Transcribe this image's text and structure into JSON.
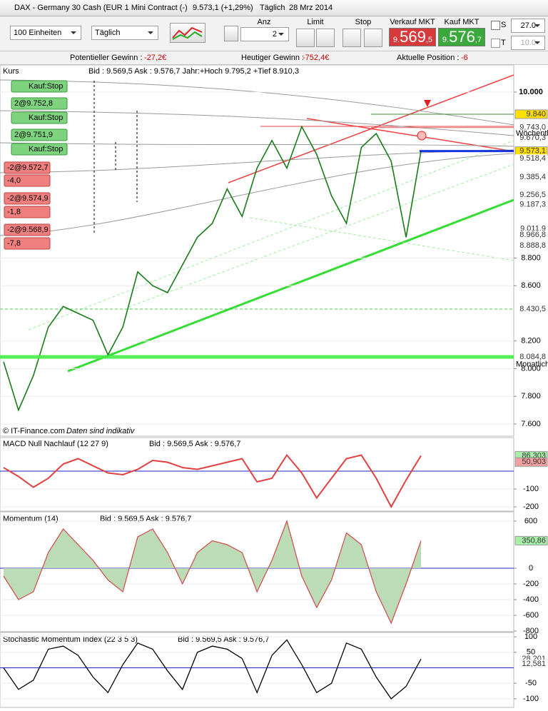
{
  "title_bar": {
    "instrument": "DAX - Germany 30 Cash (EUR 1 Mini Contract (-)",
    "price": "9.573,1 (+1,29%)",
    "period": "Täglich",
    "date": "28 Mrz 2014"
  },
  "toolbar": {
    "units": "100 Einheiten",
    "interval": "Täglich",
    "qty_label": "Anz",
    "qty": "2",
    "limit_label": "Limit",
    "stop_label": "Stop",
    "sell_label": "Verkauf MKT",
    "sell_prefix": "9.",
    "sell_main": "569",
    "sell_suffix": ",5",
    "buy_label": "Kauf MKT",
    "buy_prefix": "9.",
    "buy_main": "576",
    "buy_suffix": ",7",
    "s_label": "S",
    "s_value": "27.0",
    "t_label": "T",
    "t_value": "10.0"
  },
  "stats": [
    {
      "label": "Potentieller Gewinn :",
      "value": "-27,2€"
    },
    {
      "label": "Heutiger Gewinn :",
      "value": "-752,4€"
    },
    {
      "label": "Aktuelle Position :",
      "value": "-6"
    }
  ],
  "main": {
    "name": "Kurs",
    "info": "Bid : 9.569,5 Ask : 9.576,7 Jahr:+Hoch 9.795,2 +Tief 8.910,3",
    "footer_brand": "© IT-Finance.com",
    "footer_note": "Daten sind indikativ",
    "orders": [
      {
        "label": "Kauf:Stop",
        "kind": "buy"
      },
      {
        "label": "2@9.752,8",
        "kind": "buy"
      },
      {
        "label": "Kauf:Stop",
        "kind": "buy"
      },
      {
        "label": "2@9.751,9",
        "kind": "buy"
      },
      {
        "label": "Kauf:Stop",
        "kind": "buy"
      },
      {
        "label": "-2@9.572,7",
        "kind": "sell"
      },
      {
        "label": "-4,0",
        "kind": "sell"
      },
      {
        "label": "-2@9.574,9",
        "kind": "sell"
      },
      {
        "label": "-1,8",
        "kind": "sell"
      },
      {
        "label": "-2@9.568,9",
        "kind": "sell"
      },
      {
        "label": "-7,8",
        "kind": "sell"
      }
    ],
    "ylim": [
      7512,
      10196
    ],
    "yticks": [
      {
        "value": 10000,
        "label": "10.000"
      },
      {
        "value": 8800,
        "label": "8.800"
      },
      {
        "value": 8600,
        "label": "8.600"
      },
      {
        "value": 8200,
        "label": "8.200"
      },
      {
        "value": 8000,
        "label": "8.000"
      },
      {
        "value": 7800,
        "label": "7.800"
      },
      {
        "value": 7600,
        "label": "7.600"
      }
    ],
    "levels": [
      {
        "value": 9840,
        "label": "9.840",
        "color": "#ffe000",
        "line": "#2a8a2a"
      },
      {
        "value": 9743,
        "label": "9.743,0",
        "color": "#ffffff",
        "line": "#e05050"
      },
      {
        "value": 9670.3,
        "label": "9.670,3",
        "color": "#ffffff"
      },
      {
        "value": 9573.1,
        "label": "9.573,1",
        "color": "#ffe000",
        "line": "#0022dd"
      },
      {
        "value": 9518.4,
        "label": "9.518,4",
        "color": "#ffffff"
      },
      {
        "value": 9385.4,
        "label": "9.385,4",
        "color": "#ffffff"
      },
      {
        "value": 9256.5,
        "label": "9.256,5",
        "color": "#ffffff"
      },
      {
        "value": 9187.3,
        "label": "9.187,3",
        "color": "#ffffff"
      },
      {
        "value": 9011.9,
        "label": "9.011,9",
        "color": "#ffffff"
      },
      {
        "value": 8966.8,
        "label": "8.966,8",
        "color": "#ffffff"
      },
      {
        "value": 8888.8,
        "label": "8.888,8",
        "color": "#ffffff"
      },
      {
        "value": 8430.5,
        "label": "8.430,5",
        "color": "#ffffff",
        "line": "#33cc33"
      },
      {
        "value": 8084.8,
        "label": "8.084,8",
        "color": "#ffffff",
        "line": "#44ee44"
      }
    ],
    "level_notes": [
      {
        "value": 9700,
        "label": "Wöchentl"
      },
      {
        "value": 8030,
        "label": "Monatlich"
      }
    ],
    "prices": [
      8050,
      7700,
      7950,
      8300,
      8450,
      8400,
      8350,
      8100,
      8300,
      8700,
      8600,
      8550,
      8750,
      8950,
      9050,
      9300,
      9100,
      9450,
      9650,
      9450,
      9750,
      9550,
      9250,
      9050,
      9600,
      9700,
      9500,
      8950,
      9573.1
    ]
  },
  "macd": {
    "name": "MACD Null Nachlauf (12 27 9)",
    "info": "Bid : 9.569,5 Ask : 9.576,7",
    "ylim": [
      -224,
      188
    ],
    "yticks": [
      -100,
      -200
    ],
    "levels": [
      {
        "value": 86.303,
        "label": "86,303",
        "color": "#a8f0a8"
      },
      {
        "value": 50.903,
        "label": "50,903",
        "color": "#f5a0a0"
      }
    ],
    "values": [
      20,
      -30,
      -90,
      -40,
      40,
      70,
      30,
      -10,
      -20,
      10,
      60,
      50,
      20,
      10,
      30,
      50,
      70,
      -60,
      -40,
      90,
      -10,
      -150,
      -40,
      70,
      90,
      -40,
      -200,
      -50,
      86.303
    ]
  },
  "momentum": {
    "name": "Momentum (14)",
    "info": "Bid : 9.569,5 Ask : 9.576,7",
    "ylim": [
      -809,
      718
    ],
    "yticks": [
      600,
      0,
      -200,
      -400,
      -600,
      -800
    ],
    "levels": [
      {
        "value": 350.86,
        "label": "350,86",
        "color": "#a8f0a8"
      }
    ],
    "values": [
      -100,
      -400,
      -300,
      200,
      500,
      300,
      100,
      -150,
      -300,
      400,
      500,
      200,
      -200,
      200,
      350,
      300,
      200,
      -300,
      100,
      600,
      -100,
      -500,
      -150,
      450,
      300,
      -300,
      -700,
      -200,
      350.86
    ]
  },
  "stochastic": {
    "name": "Stochastic Momentum Index (22 3 5 3)",
    "info": "Bid : 9.569,5 Ask : 9.576,7",
    "ylim": [
      -128,
      114
    ],
    "yticks": [
      100,
      50,
      -50,
      -100
    ],
    "levels": [
      {
        "value": 28.201,
        "label": "28,201",
        "color": "#ffffff"
      },
      {
        "value": 12.581,
        "label": "12,581",
        "color": "#ffffff"
      }
    ],
    "values": [
      0,
      -70,
      -40,
      60,
      70,
      40,
      -30,
      -80,
      10,
      80,
      60,
      -10,
      -70,
      50,
      70,
      60,
      30,
      -80,
      40,
      90,
      10,
      -80,
      -50,
      80,
      60,
      -30,
      -100,
      -60,
      28.201
    ]
  }
}
